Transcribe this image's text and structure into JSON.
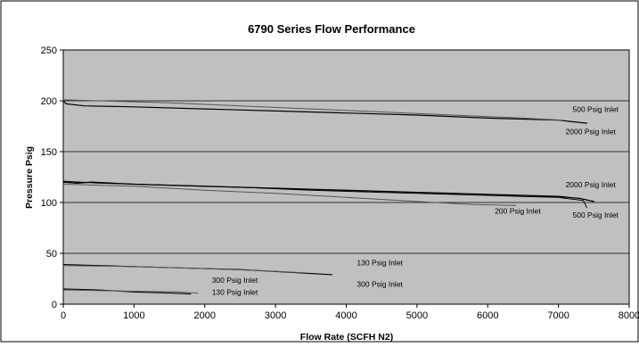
{
  "chart_data": {
    "type": "line",
    "title": "6790 Series  Flow Performance",
    "xlabel": "Flow Rate (SCFH N2)",
    "ylabel": "Pressure Psig",
    "xlim": [
      0,
      8000
    ],
    "ylim": [
      0,
      250
    ],
    "x_ticks": [
      0,
      1000,
      2000,
      3000,
      4000,
      5000,
      6000,
      7000,
      8000
    ],
    "y_ticks": [
      0,
      50,
      100,
      150,
      200,
      250
    ],
    "grid": true,
    "legend": "none",
    "plot_background": "#c0c0c0",
    "series": [
      {
        "label": "500 Psig Inlet",
        "label_at": [
          7200,
          189
        ],
        "color": "#000000",
        "width": 1.2,
        "x": [
          0,
          40,
          300,
          1000,
          2000,
          3000,
          4000,
          5000,
          6000,
          7000,
          7400
        ],
        "y": [
          200,
          197,
          195,
          194,
          192,
          190,
          188,
          186,
          183,
          181,
          178
        ]
      },
      {
        "label": "2000 Psig Inlet",
        "label_at": [
          7100,
          167
        ],
        "color": "#555555",
        "width": 1,
        "x": [
          0,
          500,
          1500,
          2500,
          3500,
          4500,
          5500,
          6500,
          7050
        ],
        "y": [
          201,
          200,
          198,
          195,
          192,
          189,
          186,
          183,
          181
        ]
      },
      {
        "label": "2000 Psig Inlet",
        "label_at": [
          7100,
          115
        ],
        "color": "#000000",
        "width": 1.3,
        "x": [
          0,
          200,
          400,
          1000,
          2000,
          3000,
          4000,
          5000,
          6000,
          7000,
          7300,
          7500
        ],
        "y": [
          120,
          119,
          120,
          118,
          116,
          114,
          112,
          110,
          108,
          106,
          104,
          101
        ]
      },
      {
        "label": "500 Psig Inlet",
        "label_at": [
          7200,
          85
        ],
        "color": "#000000",
        "width": 1,
        "x": [
          0,
          500,
          1500,
          2500,
          3500,
          4500,
          5500,
          6500,
          7000,
          7350,
          7400
        ],
        "y": [
          121,
          119,
          117,
          115,
          112,
          110,
          108,
          106,
          105,
          102,
          95
        ]
      },
      {
        "label": "200 Psig Inlet",
        "label_at": [
          6100,
          89
        ],
        "color": "#555555",
        "width": 1,
        "x": [
          0,
          1000,
          2000,
          3000,
          4000,
          5000,
          5800,
          6400
        ],
        "y": [
          118,
          116,
          112,
          109,
          105,
          101,
          98,
          97
        ]
      },
      {
        "label": "130 Psig Inlet",
        "label_at": [
          4150,
          38
        ],
        "color": "#000000",
        "width": 1.1,
        "x": [
          0,
          500,
          1500,
          2500,
          3300,
          3800
        ],
        "y": [
          39,
          38,
          36,
          34,
          31,
          29
        ]
      },
      {
        "label": "300 Psig Inlet",
        "label_at": [
          4150,
          17
        ],
        "color": "#555555",
        "width": 1,
        "x": [
          0,
          1000,
          2000,
          2800,
          3400
        ],
        "y": [
          38,
          37,
          35,
          33,
          31
        ]
      },
      {
        "label": "300 Psig Inlet",
        "label_at": [
          2100,
          21
        ],
        "color": "#000000",
        "width": 1.1,
        "x": [
          0,
          500,
          1000,
          1500,
          1800
        ],
        "y": [
          15,
          14,
          12,
          11,
          10
        ]
      },
      {
        "label": "130 Psig Inlet",
        "label_at": [
          2100,
          9
        ],
        "color": "#555555",
        "width": 1,
        "x": [
          0,
          800,
          1600,
          1900
        ],
        "y": [
          14,
          13,
          12,
          11
        ]
      }
    ]
  }
}
